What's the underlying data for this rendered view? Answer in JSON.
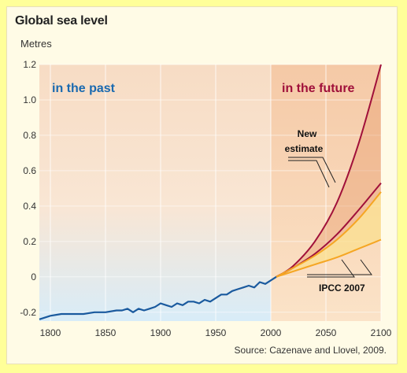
{
  "chart_data": {
    "type": "line",
    "title": "Global sea level",
    "ylabel": "Metres",
    "xlim": [
      1790,
      2100
    ],
    "ylim": [
      -0.25,
      1.2
    ],
    "x_ticks": [
      "1800",
      "1850",
      "1900",
      "1950",
      "2000",
      "2050",
      "2100"
    ],
    "y_ticks": [
      "-0.2",
      "0",
      "0.2",
      "0.4",
      "0.6",
      "0.8",
      "1.0",
      "1.2"
    ],
    "regions": {
      "past": "in the past",
      "future": "in the future"
    },
    "annotations": {
      "new_estimate_1": "New",
      "new_estimate_2": "estimate",
      "ipcc": "IPCC 2007"
    },
    "source": "Source: Cazenave and Llovel, 2009.",
    "colors": {
      "observed": "#1a5a9e",
      "new_estimate": "#a0103a",
      "ipcc": "#f5a623",
      "past_label": "#1a6ab0",
      "future_label": "#a0103a"
    },
    "series": [
      {
        "name": "observed",
        "x": [
          1790,
          1800,
          1810,
          1820,
          1830,
          1840,
          1850,
          1860,
          1865,
          1870,
          1875,
          1880,
          1885,
          1890,
          1895,
          1900,
          1905,
          1910,
          1915,
          1920,
          1925,
          1930,
          1935,
          1940,
          1945,
          1950,
          1955,
          1960,
          1965,
          1970,
          1975,
          1980,
          1985,
          1990,
          1995,
          2000,
          2005
        ],
        "y": [
          -0.24,
          -0.22,
          -0.21,
          -0.21,
          -0.21,
          -0.2,
          -0.2,
          -0.19,
          -0.19,
          -0.18,
          -0.2,
          -0.18,
          -0.19,
          -0.18,
          -0.17,
          -0.15,
          -0.16,
          -0.17,
          -0.15,
          -0.16,
          -0.14,
          -0.14,
          -0.15,
          -0.13,
          -0.14,
          -0.12,
          -0.1,
          -0.1,
          -0.08,
          -0.07,
          -0.06,
          -0.05,
          -0.06,
          -0.03,
          -0.04,
          -0.02,
          0.0
        ]
      },
      {
        "name": "new_estimate_upper",
        "x": [
          2005,
          2020,
          2040,
          2060,
          2080,
          2100
        ],
        "y": [
          0.0,
          0.06,
          0.2,
          0.42,
          0.76,
          1.2
        ]
      },
      {
        "name": "new_estimate_lower",
        "x": [
          2005,
          2020,
          2040,
          2060,
          2080,
          2100
        ],
        "y": [
          0.0,
          0.05,
          0.13,
          0.24,
          0.38,
          0.53
        ]
      },
      {
        "name": "ipcc_upper",
        "x": [
          2005,
          2020,
          2040,
          2060,
          2080,
          2100
        ],
        "y": [
          0.0,
          0.05,
          0.12,
          0.21,
          0.33,
          0.48
        ]
      },
      {
        "name": "ipcc_lower",
        "x": [
          2005,
          2020,
          2040,
          2060,
          2080,
          2100
        ],
        "y": [
          0.0,
          0.03,
          0.07,
          0.11,
          0.16,
          0.21
        ]
      }
    ]
  }
}
